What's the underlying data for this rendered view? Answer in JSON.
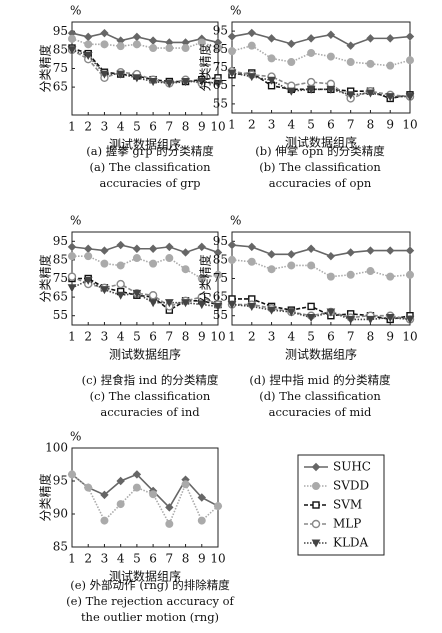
{
  "chart_data": [
    {
      "type": "line",
      "unit": "%",
      "ylabel": "分类精度",
      "xlabel": "测试数据组序",
      "caption": [
        "(a) 握拳 grp 的分类精度",
        "(a) The classification",
        "accuracies of grp"
      ],
      "legend": "bottom right",
      "x": [
        1,
        2,
        3,
        4,
        5,
        6,
        7,
        8,
        9,
        10
      ],
      "xlim": [
        1,
        10
      ],
      "xticks": [
        1,
        2,
        3,
        4,
        5,
        6,
        7,
        8,
        9,
        10
      ],
      "ylim": [
        50,
        100
      ],
      "yticks": [
        65,
        75,
        85,
        95
      ],
      "series": [
        {
          "name": "SUHC",
          "color": "#666666",
          "line": "solid",
          "marker": "diamond",
          "values": [
            94,
            92,
            94,
            90,
            92,
            90,
            89,
            89,
            91,
            89
          ]
        },
        {
          "name": "SVDD",
          "color": "#aaaaaa",
          "line": "dotted",
          "marker": "circle",
          "values": [
            91,
            88,
            88,
            87,
            88,
            86,
            86,
            86,
            89,
            86
          ]
        },
        {
          "name": "SVM",
          "color": "#111111",
          "line": "dashed",
          "marker": "square",
          "values": [
            86,
            83,
            73,
            72,
            71,
            69,
            68,
            68,
            69,
            70
          ]
        },
        {
          "name": "MLP",
          "color": "#888888",
          "line": "dashed",
          "marker": "ring",
          "values": [
            85,
            80,
            70,
            73,
            72,
            69,
            67,
            69,
            67,
            68
          ]
        },
        {
          "name": "KLDA",
          "color": "#444444",
          "line": "dotted",
          "marker": "triangle",
          "values": [
            85,
            82,
            72,
            72,
            70,
            68,
            67,
            68,
            68,
            67
          ]
        }
      ]
    },
    {
      "type": "line",
      "unit": "%",
      "ylabel": "分类精度",
      "xlabel": "测试数据组序",
      "caption": [
        "(b) 伸掌 opn 的分类精度",
        "(b) The classification",
        "accuracies of opn"
      ],
      "x": [
        1,
        2,
        3,
        4,
        5,
        6,
        7,
        8,
        9,
        10
      ],
      "xlim": [
        1,
        10
      ],
      "xticks": [
        1,
        2,
        3,
        4,
        5,
        6,
        7,
        8,
        9,
        10
      ],
      "ylim": [
        50,
        100
      ],
      "yticks": [
        55,
        65,
        75,
        85,
        95
      ],
      "series": [
        {
          "name": "SUHC",
          "color": "#666666",
          "line": "solid",
          "marker": "diamond",
          "values": [
            92,
            94,
            91,
            88,
            91,
            93,
            87,
            91,
            91,
            92
          ]
        },
        {
          "name": "SVDD",
          "color": "#aaaaaa",
          "line": "dotted",
          "marker": "circle",
          "values": [
            84,
            87,
            80,
            78,
            83,
            81,
            78,
            77,
            76,
            79
          ]
        },
        {
          "name": "SVM",
          "color": "#111111",
          "line": "dashed",
          "marker": "square",
          "values": [
            71,
            72,
            65,
            63,
            63,
            63,
            62,
            62,
            58,
            60
          ]
        },
        {
          "name": "MLP",
          "color": "#888888",
          "line": "dashed",
          "marker": "ring",
          "values": [
            73,
            71,
            70,
            65,
            67,
            66,
            58,
            62,
            60,
            59
          ]
        },
        {
          "name": "KLDA",
          "color": "#444444",
          "line": "dotted",
          "marker": "triangle",
          "values": [
            72,
            70,
            68,
            62,
            63,
            63,
            60,
            61,
            59,
            59
          ]
        }
      ]
    },
    {
      "type": "line",
      "unit": "%",
      "ylabel": "分类精度",
      "xlabel": "测试数据组序",
      "caption": [
        "(c) 捏食指 ind 的分类精度",
        "(c) The classification",
        "accuracies of ind"
      ],
      "x": [
        1,
        2,
        3,
        4,
        5,
        6,
        7,
        8,
        9,
        10
      ],
      "xlim": [
        1,
        10
      ],
      "xticks": [
        1,
        2,
        3,
        4,
        5,
        6,
        7,
        8,
        9,
        10
      ],
      "ylim": [
        50,
        100
      ],
      "yticks": [
        55,
        65,
        75,
        85,
        95
      ],
      "series": [
        {
          "name": "SUHC",
          "color": "#666666",
          "line": "solid",
          "marker": "diamond",
          "values": [
            92,
            91,
            90,
            93,
            91,
            91,
            92,
            89,
            92,
            89
          ]
        },
        {
          "name": "SVDD",
          "color": "#aaaaaa",
          "line": "dotted",
          "marker": "circle",
          "values": [
            87,
            87,
            83,
            82,
            86,
            83,
            86,
            80,
            75,
            77
          ]
        },
        {
          "name": "SVM",
          "color": "#111111",
          "line": "dashed",
          "marker": "square",
          "values": [
            75,
            75,
            70,
            68,
            66,
            65,
            58,
            63,
            63,
            61
          ]
        },
        {
          "name": "MLP",
          "color": "#888888",
          "line": "dashed",
          "marker": "ring",
          "values": [
            76,
            72,
            70,
            72,
            67,
            66,
            60,
            63,
            65,
            61
          ]
        },
        {
          "name": "KLDA",
          "color": "#444444",
          "line": "dotted",
          "marker": "triangle",
          "values": [
            70,
            74,
            69,
            66,
            67,
            62,
            62,
            62,
            61,
            60
          ]
        }
      ]
    },
    {
      "type": "line",
      "unit": "%",
      "ylabel": "分类精度",
      "xlabel": "测试数据组序",
      "caption": [
        "(d) 捏中指 mid 的分类精度",
        "(d) The classification",
        "accuracies of mid"
      ],
      "x": [
        1,
        2,
        3,
        4,
        5,
        6,
        7,
        8,
        9,
        10
      ],
      "xlim": [
        1,
        10
      ],
      "xticks": [
        1,
        2,
        3,
        4,
        5,
        6,
        7,
        8,
        9,
        10
      ],
      "ylim": [
        50,
        100
      ],
      "yticks": [
        55,
        65,
        75,
        85,
        95
      ],
      "series": [
        {
          "name": "SUHC",
          "color": "#666666",
          "line": "solid",
          "marker": "diamond",
          "values": [
            93,
            92,
            88,
            88,
            91,
            87,
            89,
            90,
            90,
            90
          ]
        },
        {
          "name": "SVDD",
          "color": "#aaaaaa",
          "line": "dotted",
          "marker": "circle",
          "values": [
            85,
            84,
            80,
            82,
            82,
            76,
            77,
            79,
            76,
            77
          ]
        },
        {
          "name": "SVM",
          "color": "#111111",
          "line": "dashed",
          "marker": "square",
          "values": [
            64,
            64,
            60,
            58,
            60,
            55,
            56,
            55,
            53,
            55
          ]
        },
        {
          "name": "MLP",
          "color": "#888888",
          "line": "dashed",
          "marker": "ring",
          "values": [
            61,
            61,
            59,
            57,
            55,
            57,
            54,
            55,
            55,
            53
          ]
        },
        {
          "name": "KLDA",
          "color": "#444444",
          "line": "dotted",
          "marker": "triangle",
          "values": [
            61,
            60,
            58,
            57,
            54,
            57,
            53,
            53,
            54,
            53
          ]
        }
      ]
    },
    {
      "type": "line",
      "unit": "%",
      "ylabel": "分类精度",
      "xlabel": "测试数据组序",
      "caption": [
        "(e) 外部动作 (rng) 的排除精度",
        "(e) The rejection accuracy of",
        "the outlier motion (rng)"
      ],
      "x": [
        1,
        2,
        3,
        4,
        5,
        6,
        7,
        8,
        9,
        10
      ],
      "xlim": [
        1,
        10
      ],
      "xticks": [
        1,
        2,
        3,
        4,
        5,
        6,
        7,
        8,
        9,
        10
      ],
      "ylim": [
        85,
        100
      ],
      "yticks": [
        85,
        90,
        95,
        100
      ],
      "series": [
        {
          "name": "SUHC",
          "color": "#666666",
          "line": "solid",
          "marker": "diamond",
          "values": [
            96,
            94,
            92.9,
            95,
            96,
            93.5,
            91,
            95.2,
            92.5,
            91.2
          ]
        },
        {
          "name": "SVDD",
          "color": "#aaaaaa",
          "line": "dotted",
          "marker": "circle",
          "values": [
            96,
            94,
            89,
            91.5,
            94,
            93,
            88.5,
            94.5,
            89,
            91.2
          ]
        }
      ]
    }
  ]
}
